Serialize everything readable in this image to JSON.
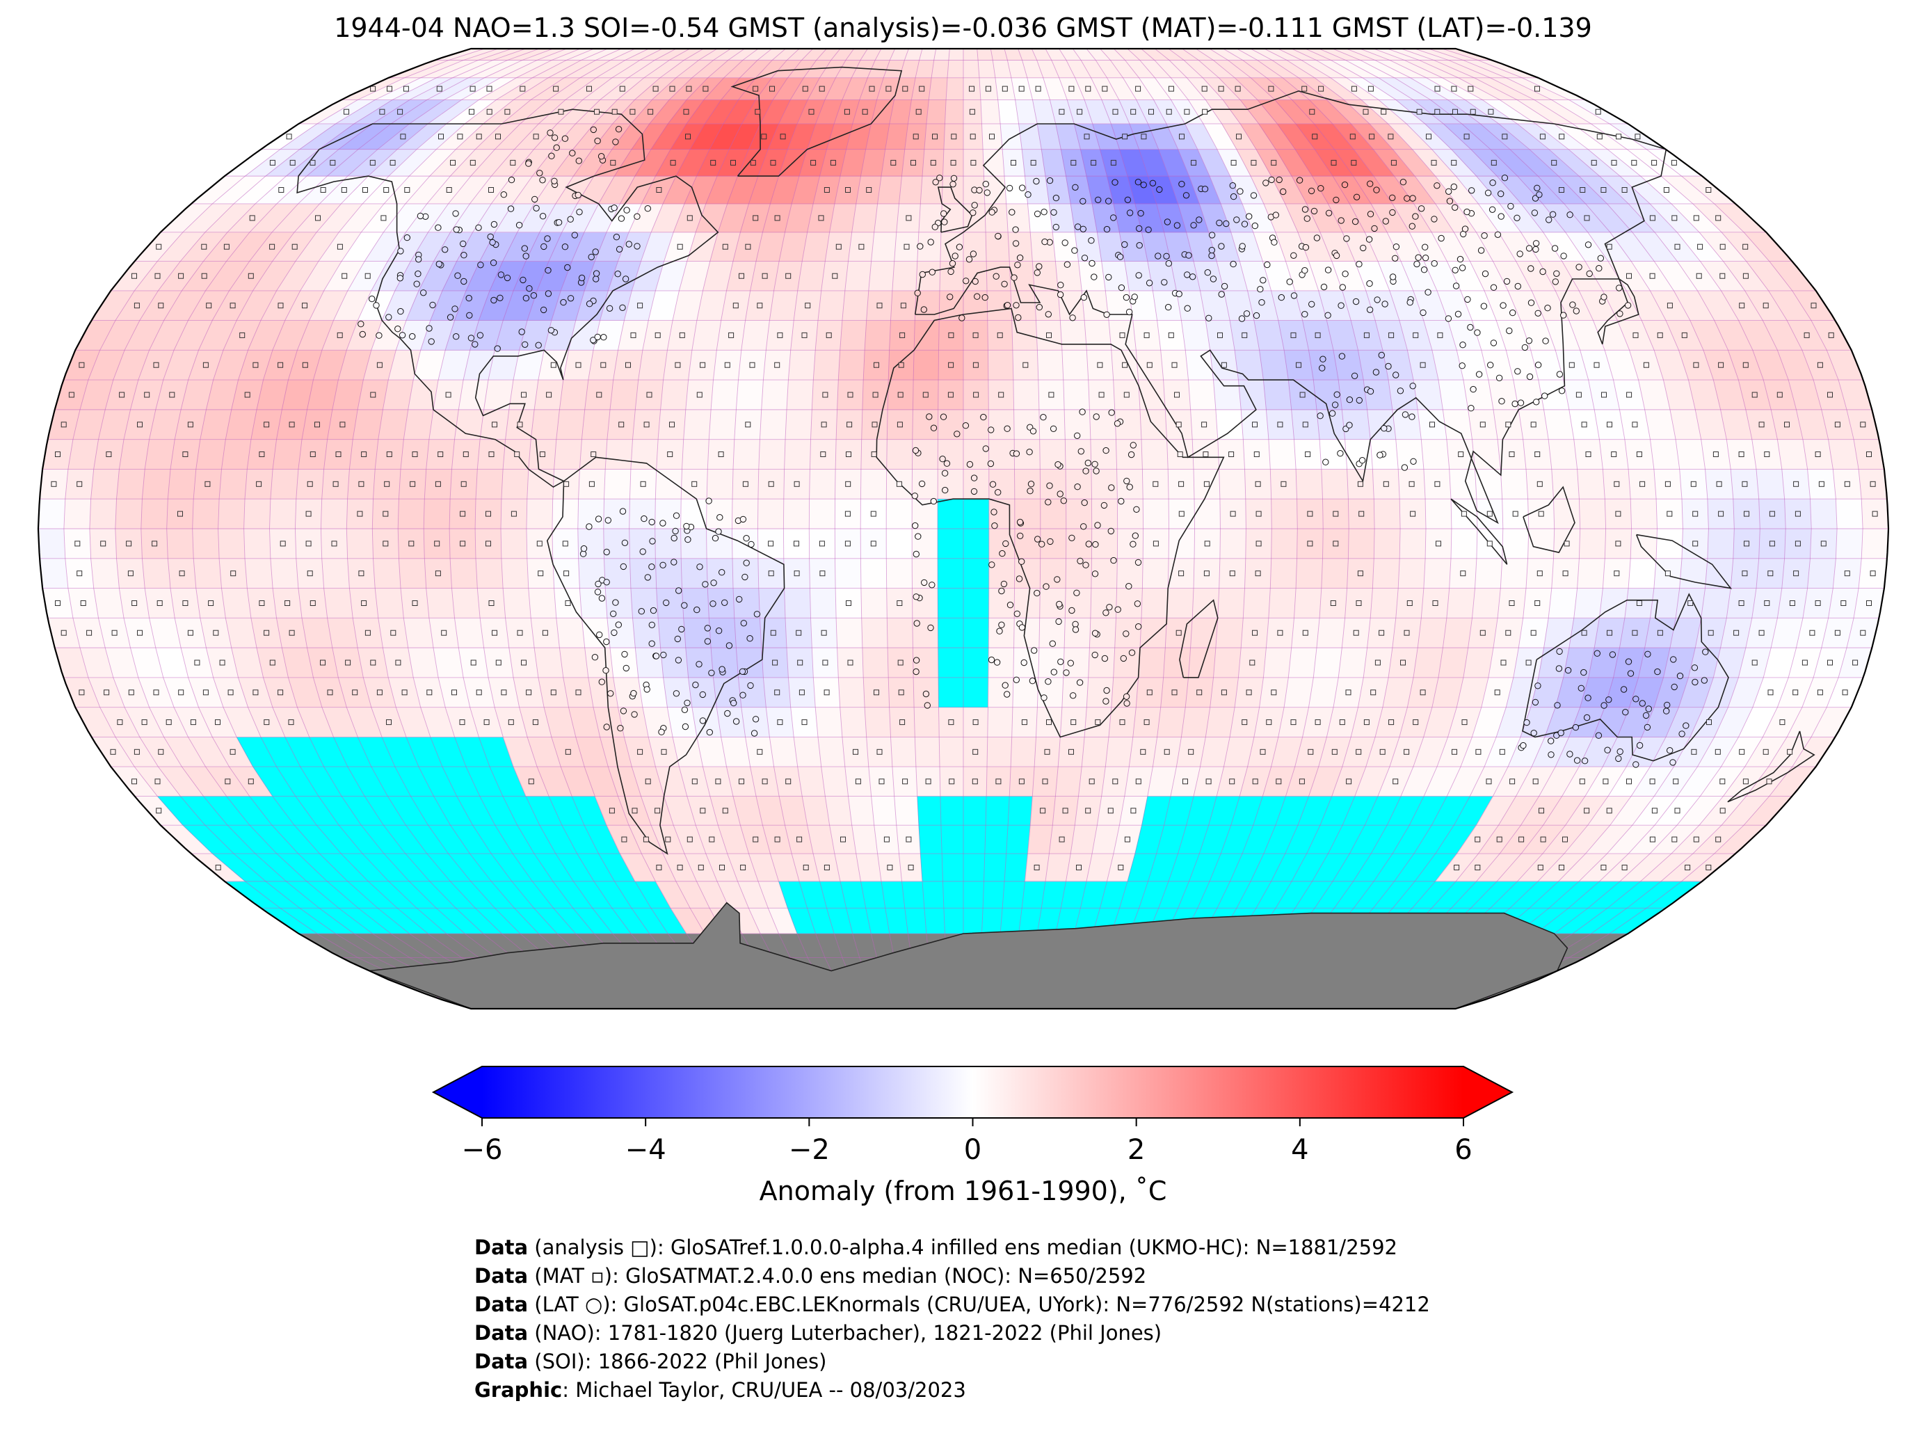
{
  "title": "1944-04 NAO=1.3 SOI=-0.54 GMST (analysis)=-0.036 GMST (MAT)=-0.111 GMST (LAT)=-0.139",
  "map": {
    "projection": "Robinson",
    "grid": "5° lat-lon cells",
    "missing_color": "#00ffff",
    "land_ice_color": "#808080",
    "regions": [
      {
        "name": "north-america-interior",
        "anomaly": -3.0
      },
      {
        "name": "north-atlantic-greenland",
        "anomaly": 3.5
      },
      {
        "name": "alaska",
        "anomaly": -2.0
      },
      {
        "name": "western-siberia-russia",
        "anomaly": -4.0
      },
      {
        "name": "central-siberia",
        "anomaly": 3.0
      },
      {
        "name": "east-asia-pacific-north",
        "anomaly": -2.5
      },
      {
        "name": "india-arabia",
        "anomaly": -1.5
      },
      {
        "name": "australia",
        "anomaly": -2.0
      },
      {
        "name": "south-america-east",
        "anomaly": -1.5
      },
      {
        "name": "eastern-pacific-tropics",
        "anomaly": 1.0
      }
    ]
  },
  "colorbar": {
    "colors": [
      "#0000ff",
      "#ffffff",
      "#ff0000"
    ],
    "min": -6,
    "max": 6,
    "ticks": [
      "−6",
      "−4",
      "−2",
      "0",
      "2",
      "4",
      "6"
    ],
    "tick_values": [
      -6,
      -4,
      -2,
      0,
      2,
      4,
      6
    ],
    "label": "Anomaly (from 1961-1990), ˚C"
  },
  "credits": [
    {
      "bold": "Data",
      "text": " (analysis □): GloSATref.1.0.0.0-alpha.4 infilled ens median (UKMO-HC): N=1881/2592"
    },
    {
      "bold": "Data",
      "text": " (MAT ▫): GloSATMAT.2.4.0.0 ens median (NOC): N=650/2592"
    },
    {
      "bold": "Data",
      "text": " (LAT ○): GloSAT.p04c.EBC.LEKnormals (CRU/UEA, UYork): N=776/2592 N(stations)=4212"
    },
    {
      "bold": "Data",
      "text": " (NAO): 1781-1820 (Juerg Luterbacher), 1821-2022 (Phil Jones)"
    },
    {
      "bold": "Data",
      "text": " (SOI): 1866-2022 (Phil Jones)"
    },
    {
      "bold": "Graphic",
      "text": ": Michael Taylor, CRU/UEA -- 08/03/2023"
    }
  ]
}
